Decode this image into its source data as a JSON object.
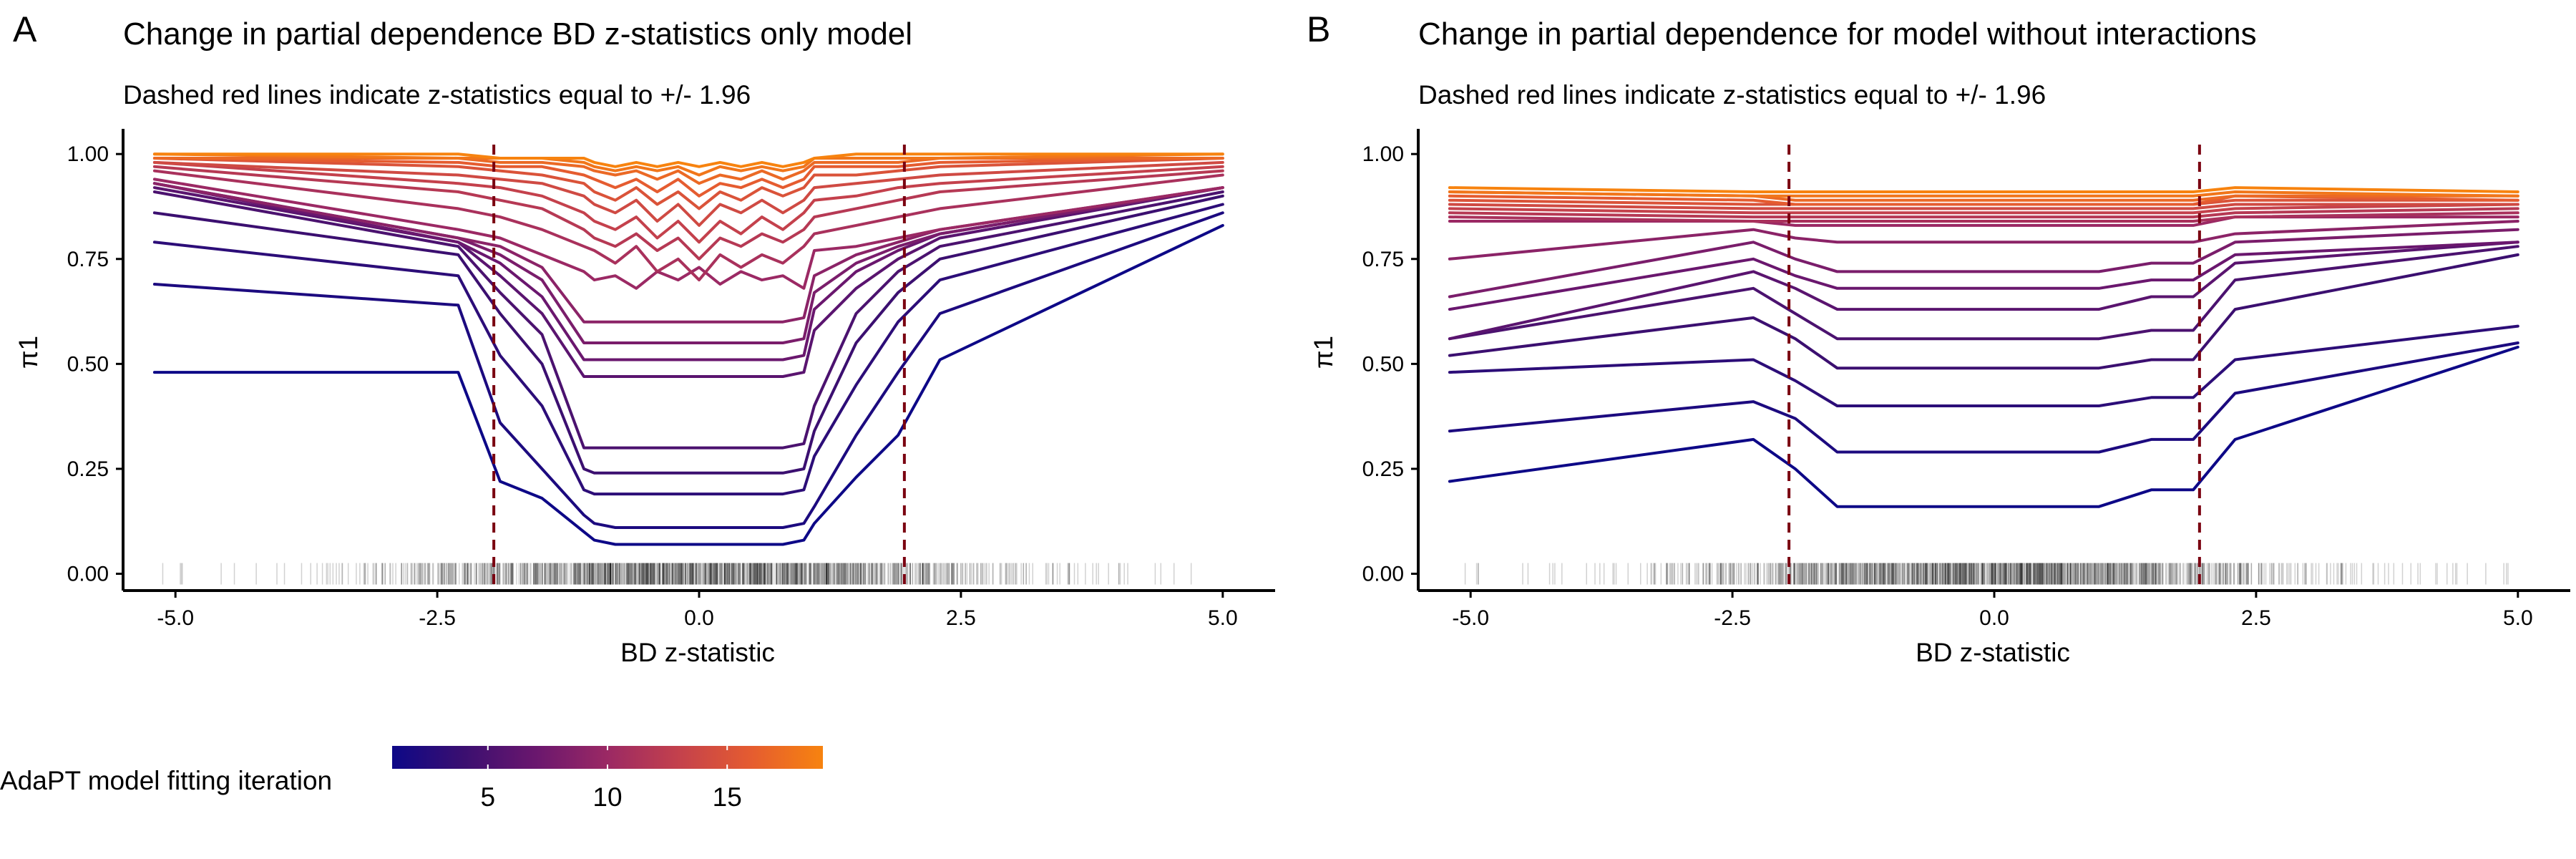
{
  "figure": {
    "legend": {
      "title": "AdaPT model fitting iteration",
      "ticks": [
        "5",
        "10",
        "15"
      ],
      "tick_values": [
        5,
        10,
        15
      ],
      "range": [
        1,
        19
      ],
      "colors": [
        "#0d0887",
        "#3b0f70",
        "#6a176e",
        "#9b2964",
        "#c4414c",
        "#e55c30",
        "#f7830f"
      ]
    }
  },
  "chart_data": [
    {
      "panel": "A",
      "type": "line",
      "title": "Change in partial dependence BD z-statistics only model",
      "subtitle": "Dashed red lines indicate z-statistics equal to +/- 1.96",
      "xlabel": "BD z-statistic",
      "ylabel": "π1",
      "xlim": [
        -5.5,
        5.5
      ],
      "ylim": [
        -0.04,
        1.06
      ],
      "xticks": [
        -5,
        -2.5,
        0,
        2.5,
        5
      ],
      "xtick_labels": [
        "-5.0",
        "-2.5",
        "0.0",
        "2.5",
        "5.0"
      ],
      "yticks": [
        0,
        0.25,
        0.5,
        0.75,
        1
      ],
      "ytick_labels": [
        "0.00",
        "0.25",
        "0.50",
        "0.75",
        "1.00"
      ],
      "reference_lines_x": [
        -1.96,
        1.96
      ],
      "rug": "dense rug of observed BD z-statistics along the x-axis",
      "x": [
        -5.2,
        -2.3,
        -1.9,
        -1.5,
        -1.1,
        -1.0,
        -0.8,
        -0.6,
        -0.4,
        -0.2,
        0.0,
        0.2,
        0.4,
        0.6,
        0.8,
        1.0,
        1.1,
        1.5,
        1.9,
        2.3,
        5.0
      ],
      "series": [
        {
          "iteration": 1,
          "values": [
            0.48,
            0.48,
            0.22,
            0.18,
            0.1,
            0.08,
            0.07,
            0.07,
            0.07,
            0.07,
            0.07,
            0.07,
            0.07,
            0.07,
            0.07,
            0.08,
            0.12,
            0.23,
            0.33,
            0.51,
            0.83
          ]
        },
        {
          "iteration": 2,
          "values": [
            0.69,
            0.64,
            0.36,
            0.25,
            0.14,
            0.12,
            0.11,
            0.11,
            0.11,
            0.11,
            0.11,
            0.11,
            0.11,
            0.11,
            0.11,
            0.12,
            0.16,
            0.33,
            0.48,
            0.62,
            0.86
          ]
        },
        {
          "iteration": 3,
          "values": [
            0.79,
            0.71,
            0.52,
            0.4,
            0.2,
            0.19,
            0.19,
            0.19,
            0.19,
            0.19,
            0.19,
            0.19,
            0.19,
            0.19,
            0.19,
            0.2,
            0.28,
            0.45,
            0.6,
            0.7,
            0.88
          ]
        },
        {
          "iteration": 4,
          "values": [
            0.86,
            0.76,
            0.62,
            0.5,
            0.25,
            0.24,
            0.24,
            0.24,
            0.24,
            0.24,
            0.24,
            0.24,
            0.24,
            0.24,
            0.24,
            0.25,
            0.34,
            0.55,
            0.67,
            0.75,
            0.9
          ]
        },
        {
          "iteration": 5,
          "values": [
            0.91,
            0.78,
            0.67,
            0.57,
            0.3,
            0.3,
            0.3,
            0.3,
            0.3,
            0.3,
            0.3,
            0.3,
            0.3,
            0.3,
            0.3,
            0.31,
            0.4,
            0.62,
            0.72,
            0.78,
            0.91
          ]
        },
        {
          "iteration": 6,
          "values": [
            0.92,
            0.79,
            0.71,
            0.62,
            0.47,
            0.47,
            0.47,
            0.47,
            0.47,
            0.47,
            0.47,
            0.47,
            0.47,
            0.47,
            0.47,
            0.48,
            0.58,
            0.68,
            0.75,
            0.8,
            0.92
          ]
        },
        {
          "iteration": 7,
          "values": [
            0.93,
            0.79,
            0.74,
            0.66,
            0.51,
            0.51,
            0.51,
            0.51,
            0.51,
            0.51,
            0.51,
            0.51,
            0.51,
            0.51,
            0.51,
            0.52,
            0.63,
            0.72,
            0.77,
            0.81,
            0.92
          ]
        },
        {
          "iteration": 8,
          "values": [
            0.93,
            0.8,
            0.76,
            0.7,
            0.55,
            0.55,
            0.55,
            0.55,
            0.55,
            0.55,
            0.55,
            0.55,
            0.55,
            0.55,
            0.55,
            0.56,
            0.67,
            0.74,
            0.78,
            0.81,
            0.92
          ]
        },
        {
          "iteration": 9,
          "values": [
            0.93,
            0.8,
            0.78,
            0.73,
            0.6,
            0.6,
            0.6,
            0.6,
            0.6,
            0.6,
            0.6,
            0.6,
            0.6,
            0.6,
            0.6,
            0.61,
            0.71,
            0.76,
            0.79,
            0.82,
            0.92
          ]
        },
        {
          "iteration": 10,
          "values": [
            0.94,
            0.82,
            0.8,
            0.76,
            0.72,
            0.7,
            0.71,
            0.68,
            0.72,
            0.7,
            0.73,
            0.69,
            0.72,
            0.7,
            0.71,
            0.68,
            0.77,
            0.78,
            0.8,
            0.82,
            0.92
          ]
        },
        {
          "iteration": 11,
          "values": [
            0.96,
            0.87,
            0.85,
            0.82,
            0.78,
            0.77,
            0.74,
            0.78,
            0.72,
            0.75,
            0.7,
            0.76,
            0.73,
            0.76,
            0.74,
            0.78,
            0.81,
            0.83,
            0.85,
            0.87,
            0.95
          ]
        },
        {
          "iteration": 12,
          "values": [
            0.97,
            0.91,
            0.89,
            0.87,
            0.82,
            0.8,
            0.78,
            0.81,
            0.77,
            0.8,
            0.75,
            0.8,
            0.78,
            0.81,
            0.79,
            0.82,
            0.85,
            0.87,
            0.89,
            0.91,
            0.96
          ]
        },
        {
          "iteration": 13,
          "values": [
            0.98,
            0.93,
            0.92,
            0.9,
            0.86,
            0.84,
            0.82,
            0.85,
            0.8,
            0.84,
            0.79,
            0.84,
            0.81,
            0.85,
            0.82,
            0.86,
            0.89,
            0.9,
            0.92,
            0.93,
            0.97
          ]
        },
        {
          "iteration": 14,
          "values": [
            0.98,
            0.95,
            0.94,
            0.93,
            0.9,
            0.88,
            0.86,
            0.89,
            0.84,
            0.88,
            0.83,
            0.88,
            0.86,
            0.89,
            0.86,
            0.89,
            0.92,
            0.93,
            0.94,
            0.95,
            0.98
          ]
        },
        {
          "iteration": 15,
          "values": [
            0.99,
            0.97,
            0.96,
            0.95,
            0.93,
            0.91,
            0.89,
            0.92,
            0.88,
            0.91,
            0.87,
            0.91,
            0.89,
            0.92,
            0.9,
            0.92,
            0.95,
            0.95,
            0.96,
            0.97,
            0.99
          ]
        },
        {
          "iteration": 16,
          "values": [
            0.99,
            0.98,
            0.97,
            0.97,
            0.95,
            0.94,
            0.92,
            0.94,
            0.91,
            0.94,
            0.9,
            0.93,
            0.92,
            0.94,
            0.92,
            0.94,
            0.97,
            0.97,
            0.97,
            0.98,
            0.99
          ]
        },
        {
          "iteration": 17,
          "values": [
            0.99,
            0.99,
            0.98,
            0.98,
            0.97,
            0.96,
            0.95,
            0.96,
            0.94,
            0.96,
            0.93,
            0.95,
            0.94,
            0.96,
            0.94,
            0.96,
            0.98,
            0.98,
            0.98,
            0.99,
            0.99
          ]
        },
        {
          "iteration": 18,
          "values": [
            1.0,
            0.99,
            0.99,
            0.99,
            0.98,
            0.97,
            0.96,
            0.97,
            0.96,
            0.97,
            0.95,
            0.97,
            0.96,
            0.97,
            0.96,
            0.97,
            0.99,
            0.99,
            0.99,
            0.99,
            1.0
          ]
        },
        {
          "iteration": 19,
          "values": [
            1.0,
            1.0,
            0.99,
            0.99,
            0.99,
            0.98,
            0.97,
            0.98,
            0.97,
            0.98,
            0.97,
            0.98,
            0.97,
            0.98,
            0.97,
            0.98,
            0.99,
            1.0,
            1.0,
            1.0,
            1.0
          ]
        }
      ]
    },
    {
      "panel": "B",
      "type": "line",
      "title": "Change in partial dependence for model without interactions",
      "subtitle": "Dashed red lines indicate z-statistics equal to +/- 1.96",
      "xlabel": "BD z-statistic",
      "ylabel": "π1",
      "xlim": [
        -5.5,
        5.5
      ],
      "ylim": [
        -0.04,
        1.06
      ],
      "xticks": [
        -5,
        -2.5,
        0,
        2.5,
        5
      ],
      "xtick_labels": [
        "-5.0",
        "-2.5",
        "0.0",
        "2.5",
        "5.0"
      ],
      "yticks": [
        0,
        0.25,
        0.5,
        0.75,
        1
      ],
      "ytick_labels": [
        "0.00",
        "0.25",
        "0.50",
        "0.75",
        "1.00"
      ],
      "reference_lines_x": [
        -1.96,
        1.96
      ],
      "rug": "dense rug of observed BD z-statistics along the x-axis",
      "x": [
        -5.2,
        -2.3,
        -1.9,
        -1.5,
        1.0,
        1.5,
        1.9,
        2.3,
        5.0
      ],
      "series": [
        {
          "iteration": 1,
          "values": [
            0.22,
            0.32,
            0.25,
            0.16,
            0.16,
            0.2,
            0.2,
            0.32,
            0.54
          ]
        },
        {
          "iteration": 2,
          "values": [
            0.34,
            0.41,
            0.37,
            0.29,
            0.29,
            0.32,
            0.32,
            0.43,
            0.55
          ]
        },
        {
          "iteration": 3,
          "values": [
            0.48,
            0.51,
            0.46,
            0.4,
            0.4,
            0.42,
            0.42,
            0.51,
            0.59
          ]
        },
        {
          "iteration": 4,
          "values": [
            0.52,
            0.61,
            0.56,
            0.49,
            0.49,
            0.51,
            0.51,
            0.63,
            0.76
          ]
        },
        {
          "iteration": 5,
          "values": [
            0.56,
            0.68,
            0.62,
            0.56,
            0.56,
            0.58,
            0.58,
            0.7,
            0.78
          ]
        },
        {
          "iteration": 6,
          "values": [
            0.56,
            0.72,
            0.68,
            0.63,
            0.63,
            0.66,
            0.66,
            0.74,
            0.79
          ]
        },
        {
          "iteration": 7,
          "values": [
            0.63,
            0.75,
            0.71,
            0.68,
            0.68,
            0.7,
            0.7,
            0.76,
            0.79
          ]
        },
        {
          "iteration": 8,
          "values": [
            0.66,
            0.79,
            0.75,
            0.72,
            0.72,
            0.74,
            0.74,
            0.79,
            0.82
          ]
        },
        {
          "iteration": 9,
          "values": [
            0.75,
            0.82,
            0.8,
            0.79,
            0.79,
            0.79,
            0.79,
            0.81,
            0.84
          ]
        },
        {
          "iteration": 10,
          "values": [
            0.84,
            0.84,
            0.83,
            0.83,
            0.83,
            0.83,
            0.83,
            0.85,
            0.85
          ]
        },
        {
          "iteration": 11,
          "values": [
            0.85,
            0.84,
            0.84,
            0.84,
            0.84,
            0.84,
            0.84,
            0.85,
            0.86
          ]
        },
        {
          "iteration": 12,
          "values": [
            0.86,
            0.85,
            0.85,
            0.85,
            0.85,
            0.85,
            0.85,
            0.86,
            0.87
          ]
        },
        {
          "iteration": 13,
          "values": [
            0.87,
            0.86,
            0.86,
            0.86,
            0.86,
            0.86,
            0.86,
            0.87,
            0.88
          ]
        },
        {
          "iteration": 14,
          "values": [
            0.88,
            0.87,
            0.87,
            0.87,
            0.87,
            0.87,
            0.87,
            0.88,
            0.88
          ]
        },
        {
          "iteration": 15,
          "values": [
            0.89,
            0.88,
            0.88,
            0.88,
            0.88,
            0.88,
            0.88,
            0.89,
            0.89
          ]
        },
        {
          "iteration": 16,
          "values": [
            0.9,
            0.89,
            0.88,
            0.88,
            0.88,
            0.88,
            0.88,
            0.9,
            0.89
          ]
        },
        {
          "iteration": 17,
          "values": [
            0.91,
            0.9,
            0.89,
            0.89,
            0.89,
            0.89,
            0.89,
            0.9,
            0.9
          ]
        },
        {
          "iteration": 18,
          "values": [
            0.91,
            0.9,
            0.9,
            0.9,
            0.9,
            0.9,
            0.9,
            0.91,
            0.9
          ]
        },
        {
          "iteration": 19,
          "values": [
            0.92,
            0.91,
            0.91,
            0.91,
            0.91,
            0.91,
            0.91,
            0.92,
            0.91
          ]
        }
      ]
    }
  ]
}
